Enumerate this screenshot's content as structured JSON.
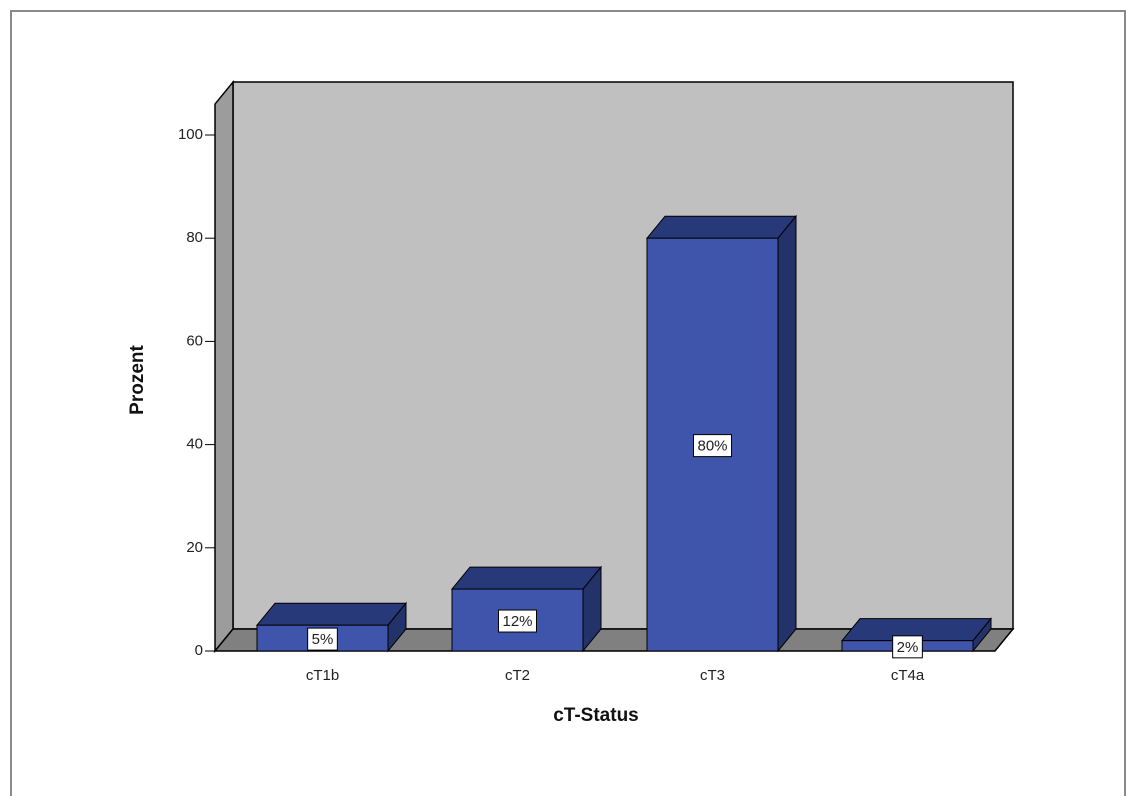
{
  "chart_data": {
    "type": "bar3d",
    "x_label": "cT-Status",
    "y_label": "Prozent",
    "categories": [
      "cT1b",
      "cT2",
      "cT3",
      "cT4a"
    ],
    "values": [
      5,
      12,
      80,
      2
    ],
    "value_labels": [
      "5%",
      "12%",
      "80%",
      "2%"
    ],
    "color": "#3f55ac",
    "ylim": [
      0,
      106
    ],
    "yticks": [
      0,
      20,
      40,
      60,
      80,
      100
    ]
  }
}
